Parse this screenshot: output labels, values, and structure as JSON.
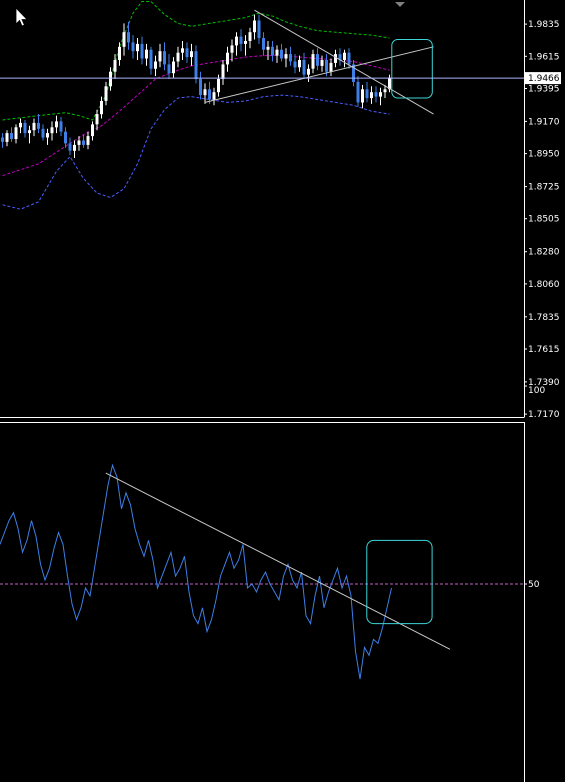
{
  "colors": {
    "background": "#000000",
    "frame": "#ffffff",
    "bull_candle": "#ffffff",
    "bear_candle": "#3d7fe6",
    "bollinger_upper": "#00c000",
    "bollinger_middle": "#c000c0",
    "bollinger_lower": "#4a5dff",
    "trendline": "#c8c8c8",
    "highlight_box": "#3fd4d8",
    "rsi_line": "#3d7fe6",
    "rsi_level": "#c060c0",
    "crosshair": "#aab4ff",
    "cursor": "#ffffff"
  },
  "icons": {
    "cursor": "arrow-cursor-icon"
  },
  "chart_data": [
    {
      "type": "candlestick",
      "title": "",
      "ylim": [
        1.715,
        2.0
      ],
      "yticks": [
        "1.9835",
        "1.9615",
        "1.9395",
        "1.9170",
        "1.8950",
        "1.8725",
        "1.8505",
        "1.8280",
        "1.8060",
        "1.7835",
        "1.7615",
        "1.7390",
        "1.7170"
      ],
      "current_price": "1.9466",
      "bars": [
        [
          1.906,
          1.909,
          1.899,
          1.903
        ],
        [
          1.903,
          1.911,
          1.9,
          1.909
        ],
        [
          1.909,
          1.913,
          1.903,
          1.905
        ],
        [
          1.905,
          1.915,
          1.902,
          1.913
        ],
        [
          1.913,
          1.919,
          1.909,
          1.916
        ],
        [
          1.916,
          1.918,
          1.906,
          1.909
        ],
        [
          1.909,
          1.914,
          1.902,
          1.911
        ],
        [
          1.911,
          1.919,
          1.907,
          1.916
        ],
        [
          1.916,
          1.922,
          1.909,
          1.912
        ],
        [
          1.912,
          1.915,
          1.904,
          1.906
        ],
        [
          1.906,
          1.912,
          1.901,
          1.909
        ],
        [
          1.909,
          1.917,
          1.904,
          1.913
        ],
        [
          1.913,
          1.921,
          1.909,
          1.917
        ],
        [
          1.917,
          1.92,
          1.907,
          1.91
        ],
        [
          1.91,
          1.913,
          1.899,
          1.902
        ],
        [
          1.902,
          1.906,
          1.894,
          1.897
        ],
        [
          1.897,
          1.904,
          1.892,
          1.901
        ],
        [
          1.901,
          1.907,
          1.897,
          1.904
        ],
        [
          1.904,
          1.908,
          1.899,
          1.901
        ],
        [
          1.901,
          1.91,
          1.898,
          1.907
        ],
        [
          1.907,
          1.917,
          1.904,
          1.915
        ],
        [
          1.915,
          1.925,
          1.911,
          1.922
        ],
        [
          1.922,
          1.934,
          1.919,
          1.931
        ],
        [
          1.931,
          1.944,
          1.928,
          1.941
        ],
        [
          1.941,
          1.954,
          1.938,
          1.951
        ],
        [
          1.951,
          1.963,
          1.946,
          1.959
        ],
        [
          1.959,
          1.971,
          1.955,
          1.968
        ],
        [
          1.968,
          1.984,
          1.962,
          1.978
        ],
        [
          1.978,
          1.985,
          1.966,
          1.971
        ],
        [
          1.971,
          1.976,
          1.96,
          1.965
        ],
        [
          1.965,
          1.974,
          1.959,
          1.97
        ],
        [
          1.97,
          1.975,
          1.956,
          1.96
        ],
        [
          1.96,
          1.97,
          1.955,
          1.966
        ],
        [
          1.966,
          1.968,
          1.949,
          1.953
        ],
        [
          1.953,
          1.962,
          1.948,
          1.958
        ],
        [
          1.958,
          1.97,
          1.954,
          1.965
        ],
        [
          1.965,
          1.971,
          1.952,
          1.956
        ],
        [
          1.956,
          1.963,
          1.946,
          1.95
        ],
        [
          1.95,
          1.961,
          1.947,
          1.958
        ],
        [
          1.958,
          1.968,
          1.954,
          1.964
        ],
        [
          1.964,
          1.972,
          1.959,
          1.967
        ],
        [
          1.967,
          1.971,
          1.957,
          1.961
        ],
        [
          1.961,
          1.97,
          1.955,
          1.965
        ],
        [
          1.965,
          1.969,
          1.943,
          1.946
        ],
        [
          1.946,
          1.951,
          1.932,
          1.935
        ],
        [
          1.935,
          1.943,
          1.929,
          1.939
        ],
        [
          1.939,
          1.944,
          1.929,
          1.932
        ],
        [
          1.932,
          1.94,
          1.928,
          1.937
        ],
        [
          1.937,
          1.949,
          1.934,
          1.946
        ],
        [
          1.946,
          1.959,
          1.942,
          1.956
        ],
        [
          1.956,
          1.968,
          1.951,
          1.964
        ],
        [
          1.964,
          1.973,
          1.958,
          1.969
        ],
        [
          1.969,
          1.978,
          1.962,
          1.975
        ],
        [
          1.975,
          1.98,
          1.965,
          1.97
        ],
        [
          1.97,
          1.976,
          1.962,
          1.972
        ],
        [
          1.972,
          1.981,
          1.967,
          1.978
        ],
        [
          1.978,
          1.99,
          1.973,
          1.986
        ],
        [
          1.986,
          1.99,
          1.97,
          1.974
        ],
        [
          1.974,
          1.978,
          1.962,
          1.966
        ],
        [
          1.966,
          1.972,
          1.959,
          1.968
        ],
        [
          1.968,
          1.972,
          1.958,
          1.962
        ],
        [
          1.962,
          1.969,
          1.957,
          1.966
        ],
        [
          1.966,
          1.97,
          1.958,
          1.96
        ],
        [
          1.96,
          1.967,
          1.954,
          1.963
        ],
        [
          1.963,
          1.968,
          1.955,
          1.958
        ],
        [
          1.958,
          1.963,
          1.95,
          1.954
        ],
        [
          1.954,
          1.962,
          1.951,
          1.959
        ],
        [
          1.959,
          1.964,
          1.946,
          1.949
        ],
        [
          1.949,
          1.956,
          1.944,
          1.953
        ],
        [
          1.953,
          1.966,
          1.95,
          1.963
        ],
        [
          1.963,
          1.967,
          1.952,
          1.955
        ],
        [
          1.955,
          1.962,
          1.951,
          1.959
        ],
        [
          1.959,
          1.963,
          1.948,
          1.951
        ],
        [
          1.951,
          1.96,
          1.948,
          1.957
        ],
        [
          1.957,
          1.966,
          1.954,
          1.963
        ],
        [
          1.963,
          1.967,
          1.955,
          1.959
        ],
        [
          1.959,
          1.966,
          1.954,
          1.964
        ],
        [
          1.964,
          1.967,
          1.953,
          1.956
        ],
        [
          1.956,
          1.959,
          1.941,
          1.944
        ],
        [
          1.944,
          1.948,
          1.927,
          1.93
        ],
        [
          1.93,
          1.942,
          1.926,
          1.939
        ],
        [
          1.939,
          1.944,
          1.93,
          1.933
        ],
        [
          1.933,
          1.941,
          1.929,
          1.937
        ],
        [
          1.937,
          1.941,
          1.93,
          1.934
        ],
        [
          1.934,
          1.94,
          1.928,
          1.937
        ],
        [
          1.937,
          1.942,
          1.933,
          1.939
        ],
        [
          1.939,
          1.949,
          1.937,
          1.947
        ]
      ],
      "bollinger": {
        "upper": [
          [
            0,
            1.918
          ],
          [
            8,
            1.921
          ],
          [
            14,
            1.923
          ],
          [
            17,
            1.921
          ],
          [
            20,
            1.918
          ],
          [
            23,
            1.935
          ],
          [
            26,
            1.968
          ],
          [
            29,
            1.991
          ],
          [
            31,
            1.999
          ],
          [
            33,
            1.999
          ],
          [
            36,
            1.99
          ],
          [
            39,
            1.984
          ],
          [
            42,
            1.982
          ],
          [
            46,
            1.984
          ],
          [
            50,
            1.986
          ],
          [
            54,
            1.988
          ],
          [
            57,
            1.991
          ],
          [
            60,
            1.989
          ],
          [
            63,
            1.985
          ],
          [
            66,
            1.982
          ],
          [
            70,
            1.979
          ],
          [
            74,
            1.978
          ],
          [
            78,
            1.977
          ],
          [
            82,
            1.976
          ],
          [
            86,
            1.974
          ]
        ],
        "middle": [
          [
            0,
            1.88
          ],
          [
            8,
            1.888
          ],
          [
            14,
            1.9
          ],
          [
            18,
            1.908
          ],
          [
            22,
            1.914
          ],
          [
            26,
            1.924
          ],
          [
            30,
            1.935
          ],
          [
            34,
            1.946
          ],
          [
            38,
            1.951
          ],
          [
            42,
            1.955
          ],
          [
            46,
            1.957
          ],
          [
            50,
            1.959
          ],
          [
            54,
            1.961
          ],
          [
            58,
            1.962
          ],
          [
            62,
            1.962
          ],
          [
            66,
            1.961
          ],
          [
            70,
            1.96
          ],
          [
            74,
            1.959
          ],
          [
            78,
            1.958
          ],
          [
            82,
            1.955
          ],
          [
            86,
            1.952
          ]
        ],
        "lower": [
          [
            0,
            1.86
          ],
          [
            4,
            1.857
          ],
          [
            8,
            1.862
          ],
          [
            12,
            1.883
          ],
          [
            15,
            1.893
          ],
          [
            18,
            1.878
          ],
          [
            21,
            1.868
          ],
          [
            24,
            1.865
          ],
          [
            27,
            1.871
          ],
          [
            30,
            1.888
          ],
          [
            33,
            1.912
          ],
          [
            36,
            1.925
          ],
          [
            39,
            1.933
          ],
          [
            42,
            1.934
          ],
          [
            46,
            1.932
          ],
          [
            50,
            1.93
          ],
          [
            54,
            1.931
          ],
          [
            58,
            1.934
          ],
          [
            62,
            1.935
          ],
          [
            66,
            1.934
          ],
          [
            70,
            1.932
          ],
          [
            74,
            1.93
          ],
          [
            78,
            1.928
          ],
          [
            82,
            1.924
          ],
          [
            86,
            1.922
          ]
        ]
      },
      "trendlines": [
        {
          "x1": 56.0,
          "y1": 1.993,
          "x2": 95.8,
          "y2": 1.922
        },
        {
          "x1": 45.0,
          "y1": 1.93,
          "x2": 95.8,
          "y2": 1.968
        }
      ],
      "highlight": {
        "x_from": 86.5,
        "x_to": 95.5,
        "y_from": 1.933,
        "y_to": 1.973
      }
    },
    {
      "type": "line",
      "title": "",
      "ylim": [
        0,
        100
      ],
      "yticks": [
        "100",
        "50"
      ],
      "level": 50,
      "values": [
        60,
        63,
        66,
        68,
        64,
        58,
        61,
        66,
        62,
        55,
        51,
        54,
        59,
        63,
        60,
        52,
        45,
        41,
        44,
        49,
        47,
        54,
        61,
        68,
        75,
        80,
        77,
        69,
        73,
        70,
        64,
        60,
        57,
        61,
        56,
        49,
        52,
        55,
        58,
        52,
        54,
        57,
        48,
        42,
        40,
        44,
        38,
        41,
        46,
        52,
        55,
        58,
        54,
        56,
        60,
        49,
        50,
        48,
        51,
        53,
        50,
        48,
        46,
        52,
        55,
        51,
        49,
        53,
        42,
        40,
        47,
        52,
        44,
        48,
        51,
        54,
        49,
        52,
        47,
        33,
        26,
        34,
        32,
        36,
        35,
        39,
        44,
        49
      ],
      "trendline": {
        "x1": 23.5,
        "y1": 78,
        "x2": 100.0,
        "y2": 33.5
      },
      "highlight": {
        "x_from": 81.5,
        "x_to": 96.0,
        "y_from": 40,
        "y_to": 61
      }
    }
  ]
}
